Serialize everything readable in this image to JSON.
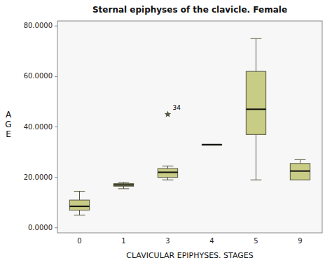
{
  "chart_data": {
    "type": "box",
    "title": "Sternal epiphyses of the clavicle. Female",
    "xlabel": "CLAVICULAR EPIPHYSES. STAGES",
    "ylabel": "A\nG\nE",
    "categories": [
      "0",
      "1",
      "3",
      "4",
      "5",
      "9"
    ],
    "boxes": [
      {
        "q1": 7000,
        "median": 8500,
        "q3": 11000,
        "whislo": 5000,
        "whishi": 14500,
        "fliers": []
      },
      {
        "q1": 16500,
        "median": 17000,
        "q3": 17500,
        "whislo": 15500,
        "whishi": 18000,
        "fliers": []
      },
      {
        "q1": 20000,
        "median": 22000,
        "q3": 23500,
        "whislo": 19000,
        "whishi": 24500,
        "fliers": [
          45000
        ]
      },
      {
        "q1": 33000,
        "median": 33000,
        "q3": 33000,
        "whislo": 33000,
        "whishi": 33000,
        "fliers": []
      },
      {
        "q1": 37000,
        "median": 47000,
        "q3": 62000,
        "whislo": 19000,
        "whishi": 75000,
        "fliers": []
      },
      {
        "q1": 19000,
        "median": 22500,
        "q3": 25500,
        "whislo": 19000,
        "whishi": 27000,
        "fliers": []
      }
    ],
    "outlier_label": "34",
    "color": "#c8cc85",
    "ylim": [
      -2000,
      82000
    ],
    "yticks": [
      {
        "value": 0,
        "label": "0.0000"
      },
      {
        "value": 20000,
        "label": "20.0000"
      },
      {
        "value": 40000,
        "label": "40.0000"
      },
      {
        "value": 60000,
        "label": "60.0000"
      },
      {
        "value": 80000,
        "label": "80.0000"
      }
    ],
    "grid": false
  }
}
